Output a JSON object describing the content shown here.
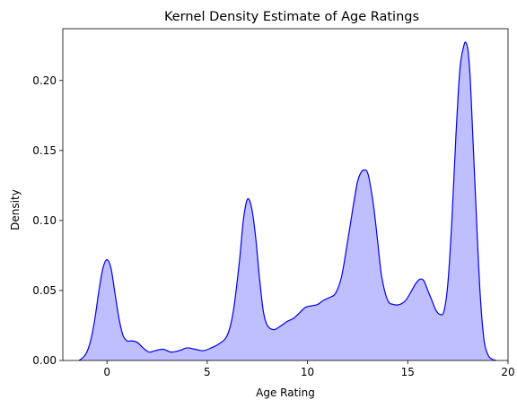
{
  "chart_data": {
    "type": "area",
    "title": "Kernel Density Estimate of Age Ratings",
    "xlabel": "Age Rating",
    "ylabel": "Density",
    "xlim": [
      -2.2,
      20.0
    ],
    "ylim": [
      0.0,
      0.237
    ],
    "xticks": [
      0,
      5,
      10,
      15,
      20
    ],
    "yticks": [
      0.0,
      0.05,
      0.1,
      0.15,
      0.2
    ],
    "xtick_labels": [
      "0",
      "5",
      "10",
      "15",
      "20"
    ],
    "ytick_labels": [
      "0.00",
      "0.05",
      "0.10",
      "0.15",
      "0.20"
    ],
    "grid": false,
    "line_color": "#0000ee",
    "fill_color": "#bfbfff",
    "series": [
      {
        "x": [
          -1.4,
          -1.2,
          -1.0,
          -0.8,
          -0.6,
          -0.4,
          -0.2,
          0.0,
          0.2,
          0.4,
          0.6,
          0.8,
          1.0,
          1.2,
          1.5,
          1.8,
          2.1,
          2.4,
          2.8,
          3.2,
          3.6,
          4.0,
          4.4,
          4.8,
          5.2,
          5.6,
          6.0,
          6.3,
          6.6,
          6.8,
          7.0,
          7.2,
          7.4,
          7.6,
          7.8,
          8.0,
          8.3,
          8.6,
          9.0,
          9.3,
          9.6,
          9.9,
          10.2,
          10.5,
          10.8,
          11.1,
          11.4,
          11.7,
          12.0,
          12.3,
          12.5,
          12.7,
          12.9,
          13.0,
          13.1,
          13.3,
          13.5,
          13.7,
          14.0,
          14.3,
          14.6,
          14.9,
          15.2,
          15.4,
          15.6,
          15.8,
          16.0,
          16.2,
          16.4,
          16.6,
          16.8,
          17.0,
          17.2,
          17.4,
          17.6,
          17.8,
          17.9,
          18.0,
          18.1,
          18.2,
          18.4,
          18.6,
          18.8,
          19.0,
          19.2,
          19.4
        ],
        "y": [
          0.0,
          0.002,
          0.006,
          0.015,
          0.03,
          0.05,
          0.066,
          0.072,
          0.066,
          0.048,
          0.03,
          0.018,
          0.014,
          0.014,
          0.013,
          0.009,
          0.006,
          0.007,
          0.008,
          0.006,
          0.007,
          0.009,
          0.008,
          0.007,
          0.009,
          0.012,
          0.018,
          0.035,
          0.07,
          0.1,
          0.115,
          0.11,
          0.09,
          0.06,
          0.035,
          0.025,
          0.022,
          0.024,
          0.028,
          0.03,
          0.034,
          0.038,
          0.039,
          0.04,
          0.043,
          0.045,
          0.048,
          0.06,
          0.085,
          0.112,
          0.128,
          0.135,
          0.136,
          0.134,
          0.128,
          0.11,
          0.085,
          0.06,
          0.043,
          0.04,
          0.04,
          0.043,
          0.05,
          0.055,
          0.058,
          0.057,
          0.05,
          0.043,
          0.036,
          0.033,
          0.035,
          0.055,
          0.1,
          0.16,
          0.208,
          0.225,
          0.227,
          0.222,
          0.205,
          0.175,
          0.11,
          0.05,
          0.015,
          0.004,
          0.001,
          0.0
        ]
      }
    ]
  }
}
